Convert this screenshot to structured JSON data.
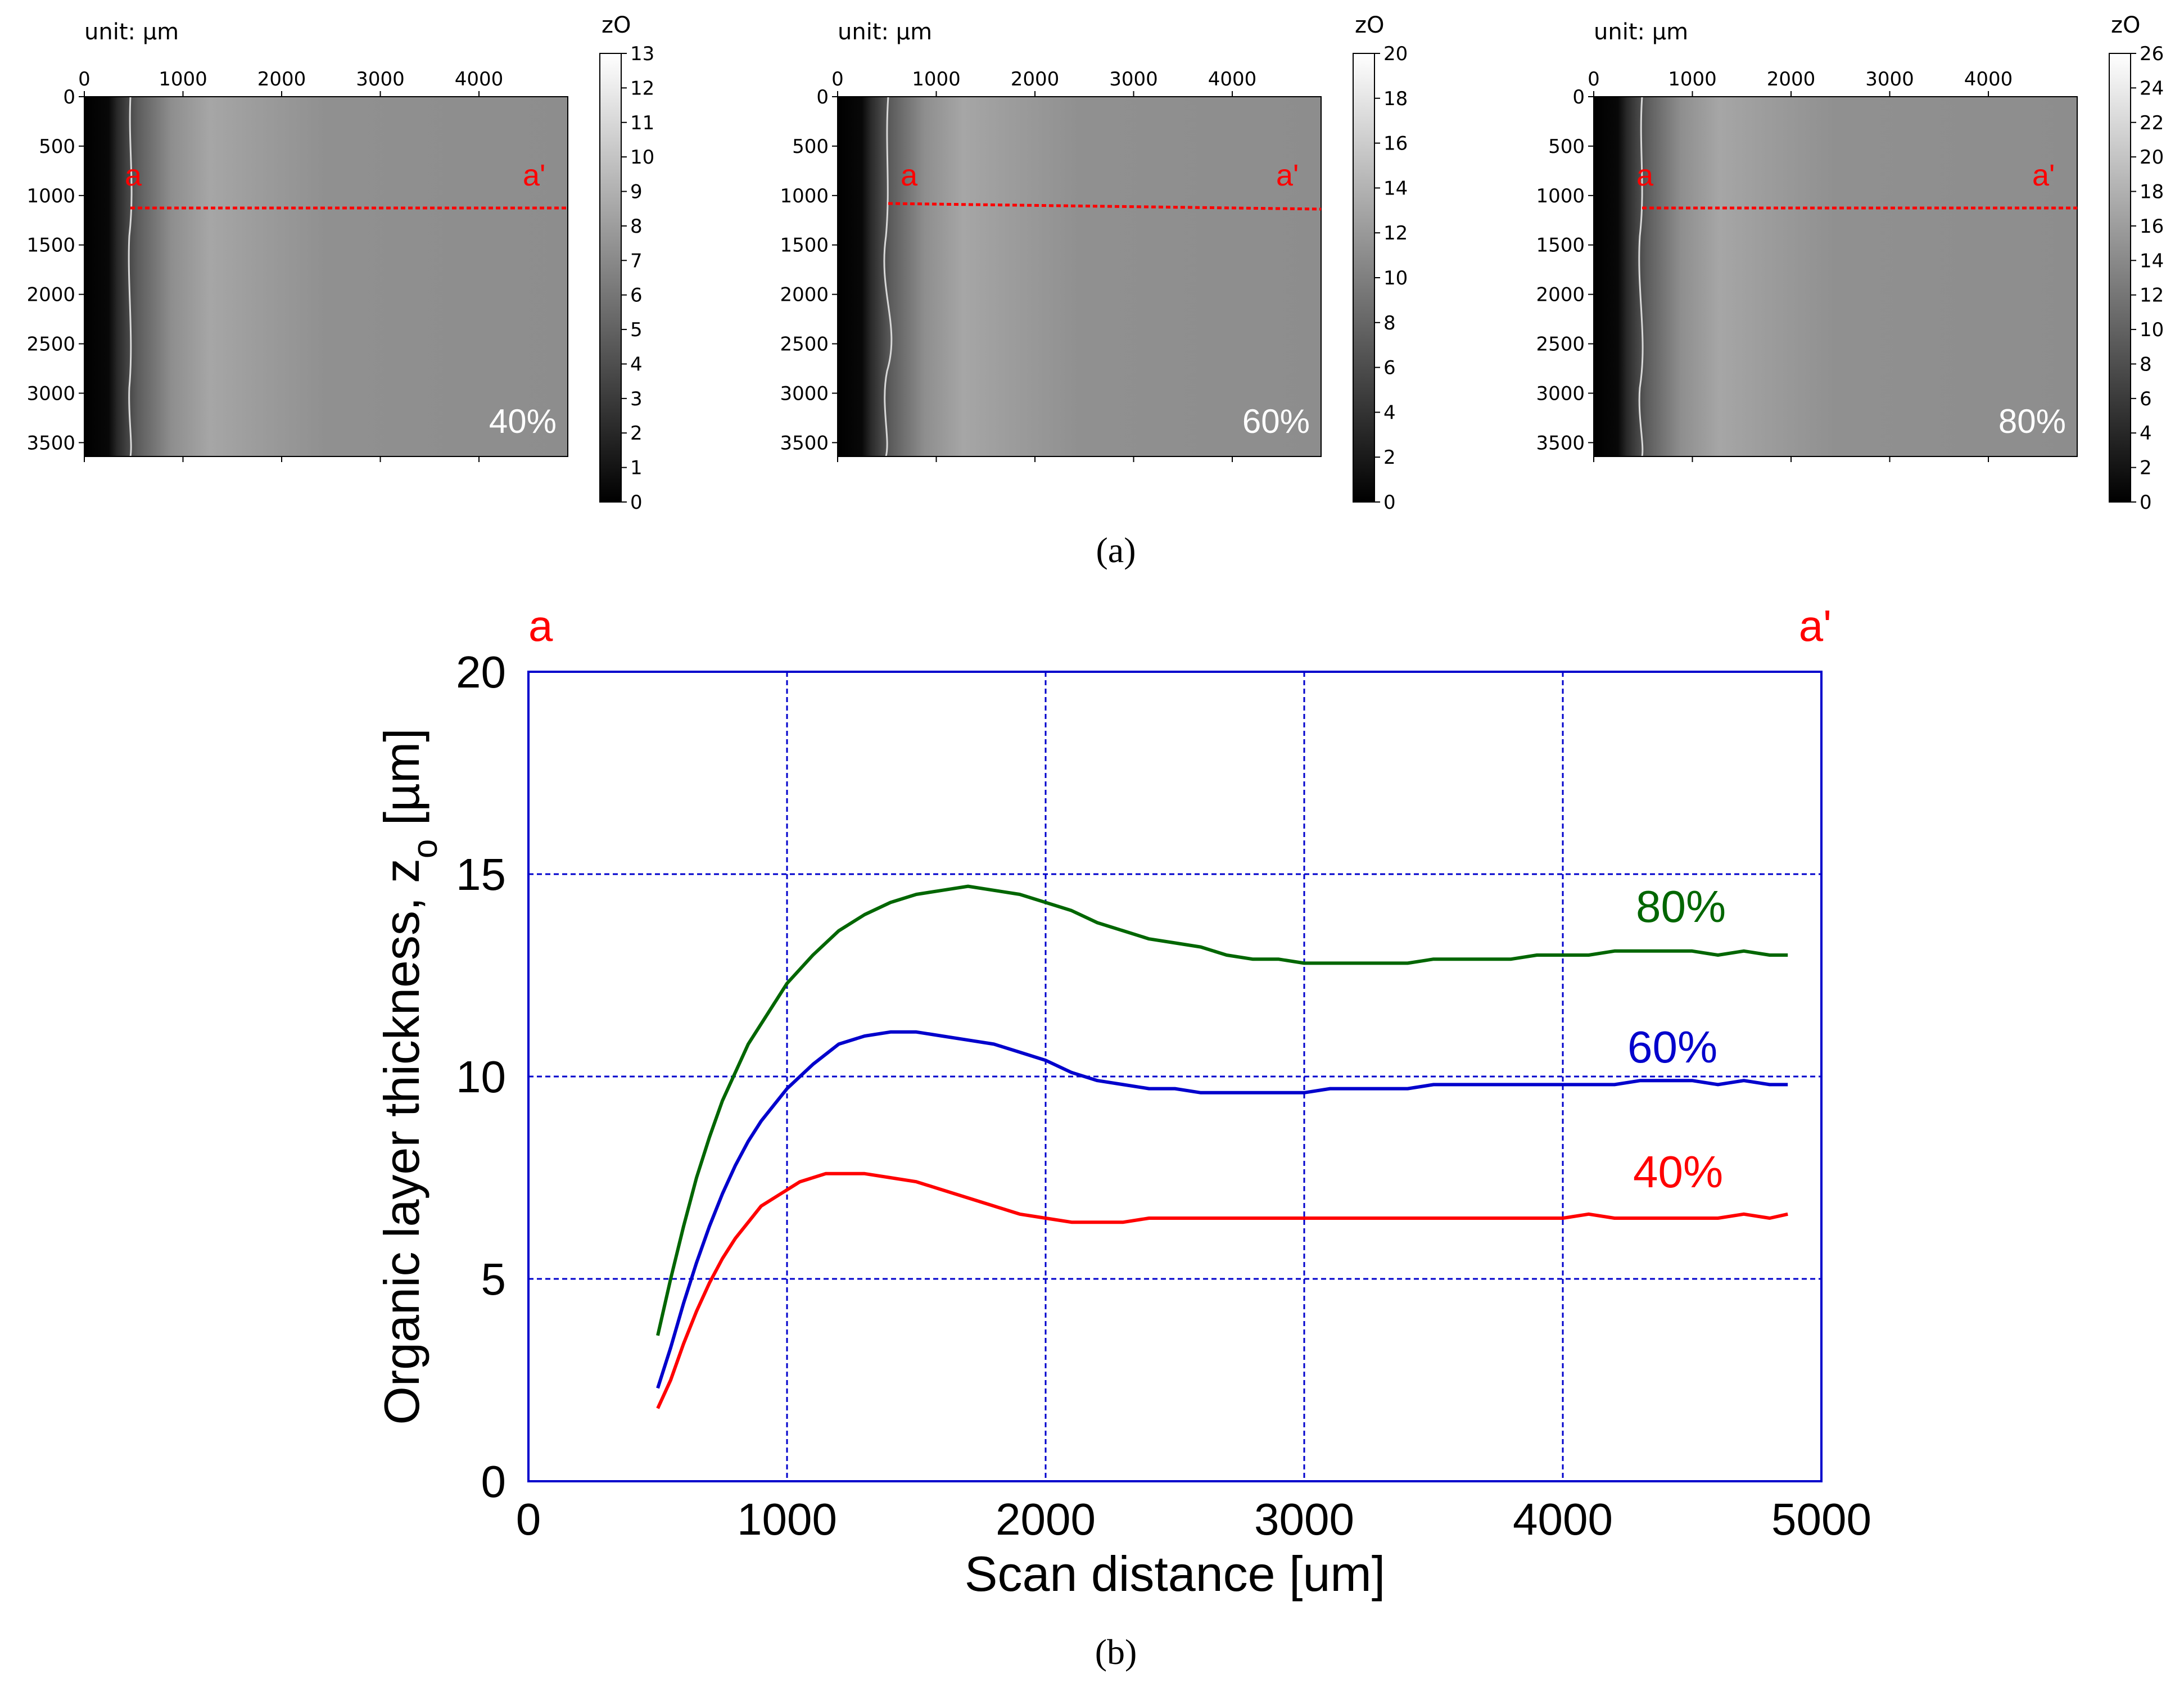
{
  "colors": {
    "lab_red": "#ff0000",
    "series_40": "#ff0000",
    "series_60": "#0000cc",
    "series_80": "#006600",
    "axis_blue": "#0000cc",
    "panel_text": "#ffffff"
  },
  "heatmaps": [
    {
      "unit_label": "unit: µm",
      "colorbar_label": "zO",
      "x_ticks": [
        "0",
        "1000",
        "2000",
        "3000",
        "4000"
      ],
      "y_ticks": [
        "0",
        "500",
        "1000",
        "1500",
        "2000",
        "2500",
        "3000",
        "3500"
      ],
      "colorbar_ticks": [
        "0",
        "1",
        "2",
        "3",
        "4",
        "5",
        "6",
        "7",
        "8",
        "9",
        "10",
        "11",
        "12",
        "13"
      ],
      "colorbar_max": 13,
      "line_start_label": "a",
      "line_end_label": "a'",
      "concentration": "40%"
    },
    {
      "unit_label": "unit: µm",
      "colorbar_label": "zO",
      "x_ticks": [
        "0",
        "1000",
        "2000",
        "3000",
        "4000"
      ],
      "y_ticks": [
        "0",
        "500",
        "1000",
        "1500",
        "2000",
        "2500",
        "3000",
        "3500"
      ],
      "colorbar_ticks": [
        "0",
        "2",
        "4",
        "6",
        "8",
        "10",
        "12",
        "14",
        "16",
        "18",
        "20"
      ],
      "colorbar_max": 20,
      "line_start_label": "a",
      "line_end_label": "a'",
      "concentration": "60%"
    },
    {
      "unit_label": "unit: µm",
      "colorbar_label": "zO",
      "x_ticks": [
        "0",
        "1000",
        "2000",
        "3000",
        "4000"
      ],
      "y_ticks": [
        "0",
        "500",
        "1000",
        "1500",
        "2000",
        "2500",
        "3000",
        "3500"
      ],
      "colorbar_ticks": [
        "0",
        "2",
        "4",
        "6",
        "8",
        "10",
        "12",
        "14",
        "16",
        "18",
        "20",
        "22",
        "24",
        "26"
      ],
      "colorbar_max": 26,
      "line_start_label": "a",
      "line_end_label": "a'",
      "concentration": "80%"
    }
  ],
  "captions": {
    "a": "(a)",
    "b": "(b)"
  },
  "chart_data": {
    "type": "line",
    "title": "",
    "xlabel": "Scan distance [um]",
    "ylabel_main": "Organic layer thickness, z",
    "ylabel_sub": "o",
    "ylabel_unit": " [µm]",
    "xlim": [
      0,
      5000
    ],
    "ylim": [
      0,
      20
    ],
    "x_ticks": [
      "0",
      "1000",
      "2000",
      "3000",
      "4000",
      "5000"
    ],
    "y_ticks": [
      "0",
      "5",
      "10",
      "15",
      "20"
    ],
    "grid": true,
    "top_left_label": "a",
    "top_right_label": "a'",
    "series": [
      {
        "name": "80%",
        "color": "#006600",
        "x": [
          500,
          550,
          600,
          650,
          700,
          750,
          800,
          850,
          900,
          950,
          1000,
          1100,
          1200,
          1300,
          1400,
          1500,
          1600,
          1700,
          1800,
          1900,
          2000,
          2100,
          2200,
          2300,
          2400,
          2500,
          2600,
          2700,
          2800,
          2900,
          3000,
          3100,
          3200,
          3300,
          3400,
          3500,
          3600,
          3700,
          3800,
          3900,
          4000,
          4100,
          4200,
          4300,
          4400,
          4500,
          4600,
          4700,
          4800,
          4870
        ],
        "y": [
          3.6,
          5.0,
          6.3,
          7.5,
          8.5,
          9.4,
          10.1,
          10.8,
          11.3,
          11.8,
          12.3,
          13.0,
          13.6,
          14.0,
          14.3,
          14.5,
          14.6,
          14.7,
          14.6,
          14.5,
          14.3,
          14.1,
          13.8,
          13.6,
          13.4,
          13.3,
          13.2,
          13.0,
          12.9,
          12.9,
          12.8,
          12.8,
          12.8,
          12.8,
          12.8,
          12.9,
          12.9,
          12.9,
          12.9,
          13.0,
          13.0,
          13.0,
          13.1,
          13.1,
          13.1,
          13.1,
          13.0,
          13.1,
          13.0,
          13.0
        ]
      },
      {
        "name": "60%",
        "color": "#0000cc",
        "x": [
          500,
          550,
          600,
          650,
          700,
          750,
          800,
          850,
          900,
          950,
          1000,
          1100,
          1200,
          1300,
          1400,
          1500,
          1600,
          1700,
          1800,
          1900,
          2000,
          2100,
          2200,
          2300,
          2400,
          2500,
          2600,
          2700,
          2800,
          2900,
          3000,
          3100,
          3200,
          3300,
          3400,
          3500,
          3600,
          3700,
          3800,
          3900,
          4000,
          4100,
          4200,
          4300,
          4400,
          4500,
          4600,
          4700,
          4800,
          4870
        ],
        "y": [
          2.3,
          3.3,
          4.4,
          5.4,
          6.3,
          7.1,
          7.8,
          8.4,
          8.9,
          9.3,
          9.7,
          10.3,
          10.8,
          11.0,
          11.1,
          11.1,
          11.0,
          10.9,
          10.8,
          10.6,
          10.4,
          10.1,
          9.9,
          9.8,
          9.7,
          9.7,
          9.6,
          9.6,
          9.6,
          9.6,
          9.6,
          9.7,
          9.7,
          9.7,
          9.7,
          9.8,
          9.8,
          9.8,
          9.8,
          9.8,
          9.8,
          9.8,
          9.8,
          9.9,
          9.9,
          9.9,
          9.8,
          9.9,
          9.8,
          9.8
        ]
      },
      {
        "name": "40%",
        "color": "#ff0000",
        "x": [
          500,
          550,
          600,
          650,
          700,
          750,
          800,
          850,
          900,
          950,
          1000,
          1050,
          1100,
          1150,
          1200,
          1250,
          1300,
          1400,
          1500,
          1600,
          1700,
          1800,
          1900,
          2000,
          2100,
          2200,
          2300,
          2400,
          2500,
          2600,
          2700,
          2800,
          2900,
          3000,
          3100,
          3200,
          3300,
          3400,
          3500,
          3600,
          3700,
          3800,
          3900,
          4000,
          4100,
          4200,
          4300,
          4400,
          4500,
          4600,
          4700,
          4800,
          4870
        ],
        "y": [
          1.8,
          2.5,
          3.4,
          4.2,
          4.9,
          5.5,
          6.0,
          6.4,
          6.8,
          7.0,
          7.2,
          7.4,
          7.5,
          7.6,
          7.6,
          7.6,
          7.6,
          7.5,
          7.4,
          7.2,
          7.0,
          6.8,
          6.6,
          6.5,
          6.4,
          6.4,
          6.4,
          6.5,
          6.5,
          6.5,
          6.5,
          6.5,
          6.5,
          6.5,
          6.5,
          6.5,
          6.5,
          6.5,
          6.5,
          6.5,
          6.5,
          6.5,
          6.5,
          6.5,
          6.6,
          6.5,
          6.5,
          6.5,
          6.5,
          6.5,
          6.6,
          6.5,
          6.6
        ]
      }
    ],
    "annotations": [
      "80%",
      "60%",
      "40%"
    ]
  }
}
